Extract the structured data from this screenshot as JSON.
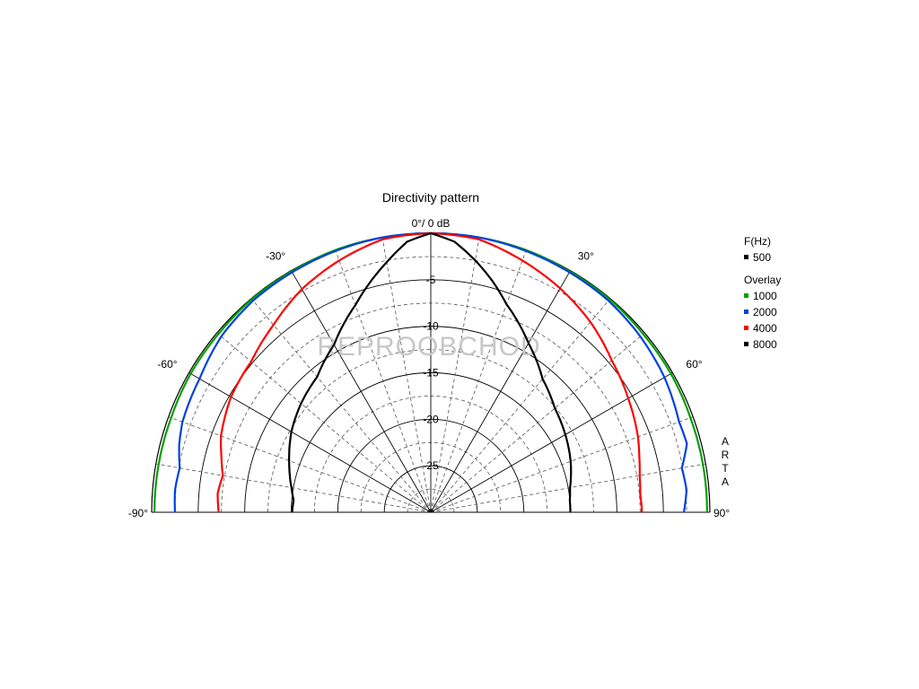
{
  "chart_data": {
    "type": "polar-semicircle",
    "title": "Directivity pattern",
    "top_label": "0°/ 0 dB",
    "db_range": [
      -30,
      0
    ],
    "db_rings": [
      0,
      -5,
      -10,
      -15,
      -20,
      -25,
      -30
    ],
    "db_tick_labels": [
      {
        "value": -5,
        "label": "-5"
      },
      {
        "value": -10,
        "label": "-10"
      },
      {
        "value": -15,
        "label": "-15"
      },
      {
        "value": -20,
        "label": "-20"
      },
      {
        "value": -25,
        "label": "-25"
      }
    ],
    "angle_range": [
      -90,
      90
    ],
    "angle_labels": [
      {
        "angle": -90,
        "label": "-90°"
      },
      {
        "angle": -60,
        "label": "-60°"
      },
      {
        "angle": -30,
        "label": "-30°"
      },
      {
        "angle": 30,
        "label": "30°"
      },
      {
        "angle": 60,
        "label": "60°"
      },
      {
        "angle": 90,
        "label": "90°"
      }
    ],
    "side_label": "ARTA",
    "watermark": "REPROOBCHOD",
    "legend": {
      "header": "F(Hz)",
      "main": {
        "name": "500",
        "color": "#000000"
      },
      "overlay_header": "Overlay",
      "overlays": [
        {
          "name": "1000",
          "color": "#00a000"
        },
        {
          "name": "2000",
          "color": "#0040e0"
        },
        {
          "name": "4000",
          "color": "#ff0000"
        },
        {
          "name": "8000",
          "color": "#000000"
        }
      ]
    },
    "series": [
      {
        "name": "1000",
        "color": "#00a000",
        "angles": [
          -90,
          -80,
          -70,
          -60,
          -50,
          -40,
          -30,
          -20,
          -10,
          0,
          10,
          20,
          30,
          40,
          50,
          60,
          70,
          80,
          90
        ],
        "values": [
          -0.3,
          -0.3,
          -0.3,
          -0.2,
          -0.2,
          -0.1,
          -0.1,
          0,
          0,
          0,
          0,
          0,
          -0.1,
          -0.1,
          -0.2,
          -0.2,
          -0.3,
          -0.3,
          -0.3
        ]
      },
      {
        "name": "2000",
        "color": "#0040e0",
        "angles": [
          -90,
          -85,
          -80,
          -75,
          -70,
          -60,
          -50,
          -40,
          -30,
          -20,
          -10,
          0,
          10,
          20,
          30,
          40,
          50,
          60,
          70,
          75,
          80,
          85,
          90
        ],
        "values": [
          -2.5,
          -2.4,
          -2.6,
          -2.0,
          -1.6,
          -1.3,
          -0.6,
          -0.3,
          -0.2,
          -0.1,
          0,
          0,
          0,
          -0.1,
          -0.2,
          -0.3,
          -0.6,
          -1.0,
          -1.6,
          -1.5,
          -2.6,
          -2.4,
          -2.8
        ]
      },
      {
        "name": "4000",
        "color": "#ff0000",
        "angles": [
          -90,
          -85,
          -80,
          -75,
          -70,
          -60,
          -50,
          -40,
          -30,
          -20,
          -10,
          0,
          10,
          20,
          30,
          40,
          50,
          60,
          70,
          75,
          80,
          85,
          90
        ],
        "values": [
          -7.2,
          -7.0,
          -7.3,
          -6.7,
          -6.0,
          -5.2,
          -4.8,
          -3.7,
          -2.3,
          -1.2,
          -0.2,
          0,
          -0.2,
          -1.2,
          -2.2,
          -3.3,
          -4.6,
          -5.5,
          -6.3,
          -6.8,
          -7.2,
          -7.4,
          -7.3
        ]
      },
      {
        "name": "8000",
        "color": "#000000",
        "angles": [
          -90,
          -85,
          -80,
          -75,
          -70,
          -60,
          -50,
          -40,
          -30,
          -20,
          -15,
          -10,
          -5,
          0,
          5,
          10,
          15,
          20,
          30,
          40,
          50,
          60,
          70,
          75,
          80,
          85,
          90
        ],
        "values": [
          -15.1,
          -15.2,
          -14.8,
          -14.3,
          -13.8,
          -12.7,
          -11.8,
          -11.0,
          -9.2,
          -6.3,
          -4.5,
          -2.7,
          -0.8,
          0,
          -0.8,
          -2.5,
          -4.3,
          -6.2,
          -9.0,
          -11.3,
          -12.6,
          -13.3,
          -14.0,
          -14.4,
          -14.8,
          -15.0,
          -15.0
        ]
      }
    ]
  }
}
